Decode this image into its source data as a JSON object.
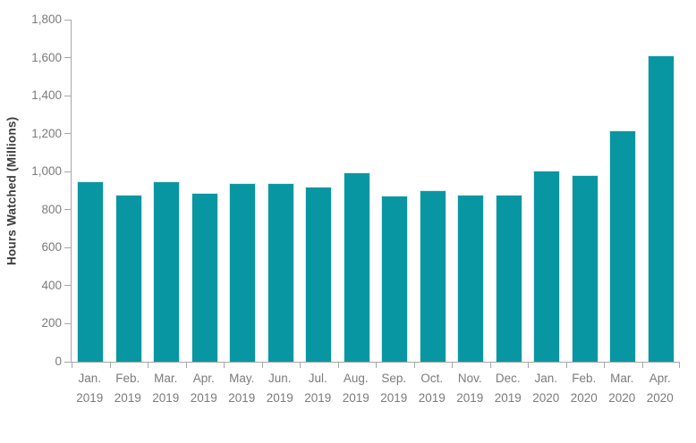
{
  "chart_data": {
    "type": "bar",
    "title": "",
    "ylabel": "Hours Watched (Millions)",
    "xlabel": "",
    "categories": [
      "Jan. 2019",
      "Feb. 2019",
      "Mar. 2019",
      "Apr. 2019",
      "May. 2019",
      "Jun. 2019",
      "Jul. 2019",
      "Aug. 2019",
      "Sep. 2019",
      "Oct. 2019",
      "Nov. 2019",
      "Dec. 2019",
      "Jan. 2020",
      "Feb. 2020",
      "Mar. 2020",
      "Apr. 2020"
    ],
    "values": [
      949,
      879,
      949,
      889,
      941,
      941,
      919,
      996,
      875,
      902,
      880,
      881,
      1008,
      984,
      1216,
      1613
    ],
    "ylim": [
      0,
      1800
    ],
    "y_tick_step": 200,
    "y_tick_labels": [
      "0",
      "200",
      "400",
      "600",
      "800",
      "1,000",
      "1,200",
      "1,400",
      "1,600",
      "1,800"
    ],
    "grid": false,
    "legend": false,
    "colors": {
      "bar": "#0897A2",
      "bar_edge": "#d8edef",
      "axis": "#a6a6a6",
      "tick_label": "#7b7b7b",
      "axis_title": "#3d3d3d",
      "background": "#ffffff"
    }
  }
}
